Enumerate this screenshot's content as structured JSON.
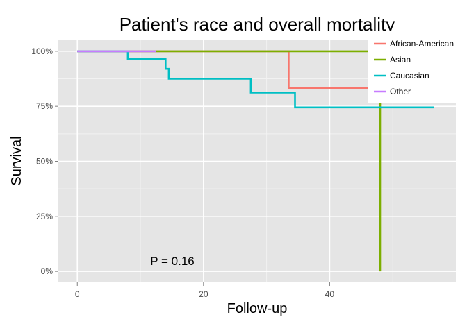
{
  "chart_data": {
    "type": "line",
    "step": true,
    "title": "Patient's race and overall mortality",
    "xlabel": "Follow-up",
    "ylabel": "Survival",
    "xlim": [
      -3,
      60
    ],
    "ylim": [
      -0.05,
      1.05
    ],
    "x_ticks": [
      0,
      20,
      40
    ],
    "x_tick_labels": [
      "0",
      "20",
      "40"
    ],
    "y_ticks": [
      0,
      0.25,
      0.5,
      0.75,
      1.0
    ],
    "y_tick_labels": [
      "0%",
      "25%",
      "50%",
      "75%",
      "100%"
    ],
    "grid": true,
    "legend_position": "top-right",
    "annotation": {
      "text": "P = 0.16",
      "x": 15,
      "y": 0.045
    },
    "series": [
      {
        "name": "African-American",
        "color": "#F8766D",
        "points": [
          [
            0,
            1.0
          ],
          [
            33.5,
            1.0
          ],
          [
            33.5,
            0.833
          ],
          [
            48,
            0.833
          ]
        ]
      },
      {
        "name": "Asian",
        "color": "#7CAE00",
        "points": [
          [
            0,
            1.0
          ],
          [
            48,
            1.0
          ],
          [
            48,
            0.0
          ]
        ]
      },
      {
        "name": "Caucasian",
        "color": "#00BFC4",
        "points": [
          [
            0,
            1.0
          ],
          [
            8,
            1.0
          ],
          [
            8,
            0.965
          ],
          [
            14,
            0.965
          ],
          [
            14,
            0.92
          ],
          [
            14.5,
            0.92
          ],
          [
            14.5,
            0.875
          ],
          [
            27.5,
            0.875
          ],
          [
            27.5,
            0.812
          ],
          [
            34.5,
            0.812
          ],
          [
            34.5,
            0.745
          ],
          [
            56.5,
            0.745
          ]
        ]
      },
      {
        "name": "Other",
        "color": "#C77CFF",
        "points": [
          [
            0,
            1.0
          ],
          [
            12.5,
            1.0
          ]
        ]
      }
    ]
  }
}
